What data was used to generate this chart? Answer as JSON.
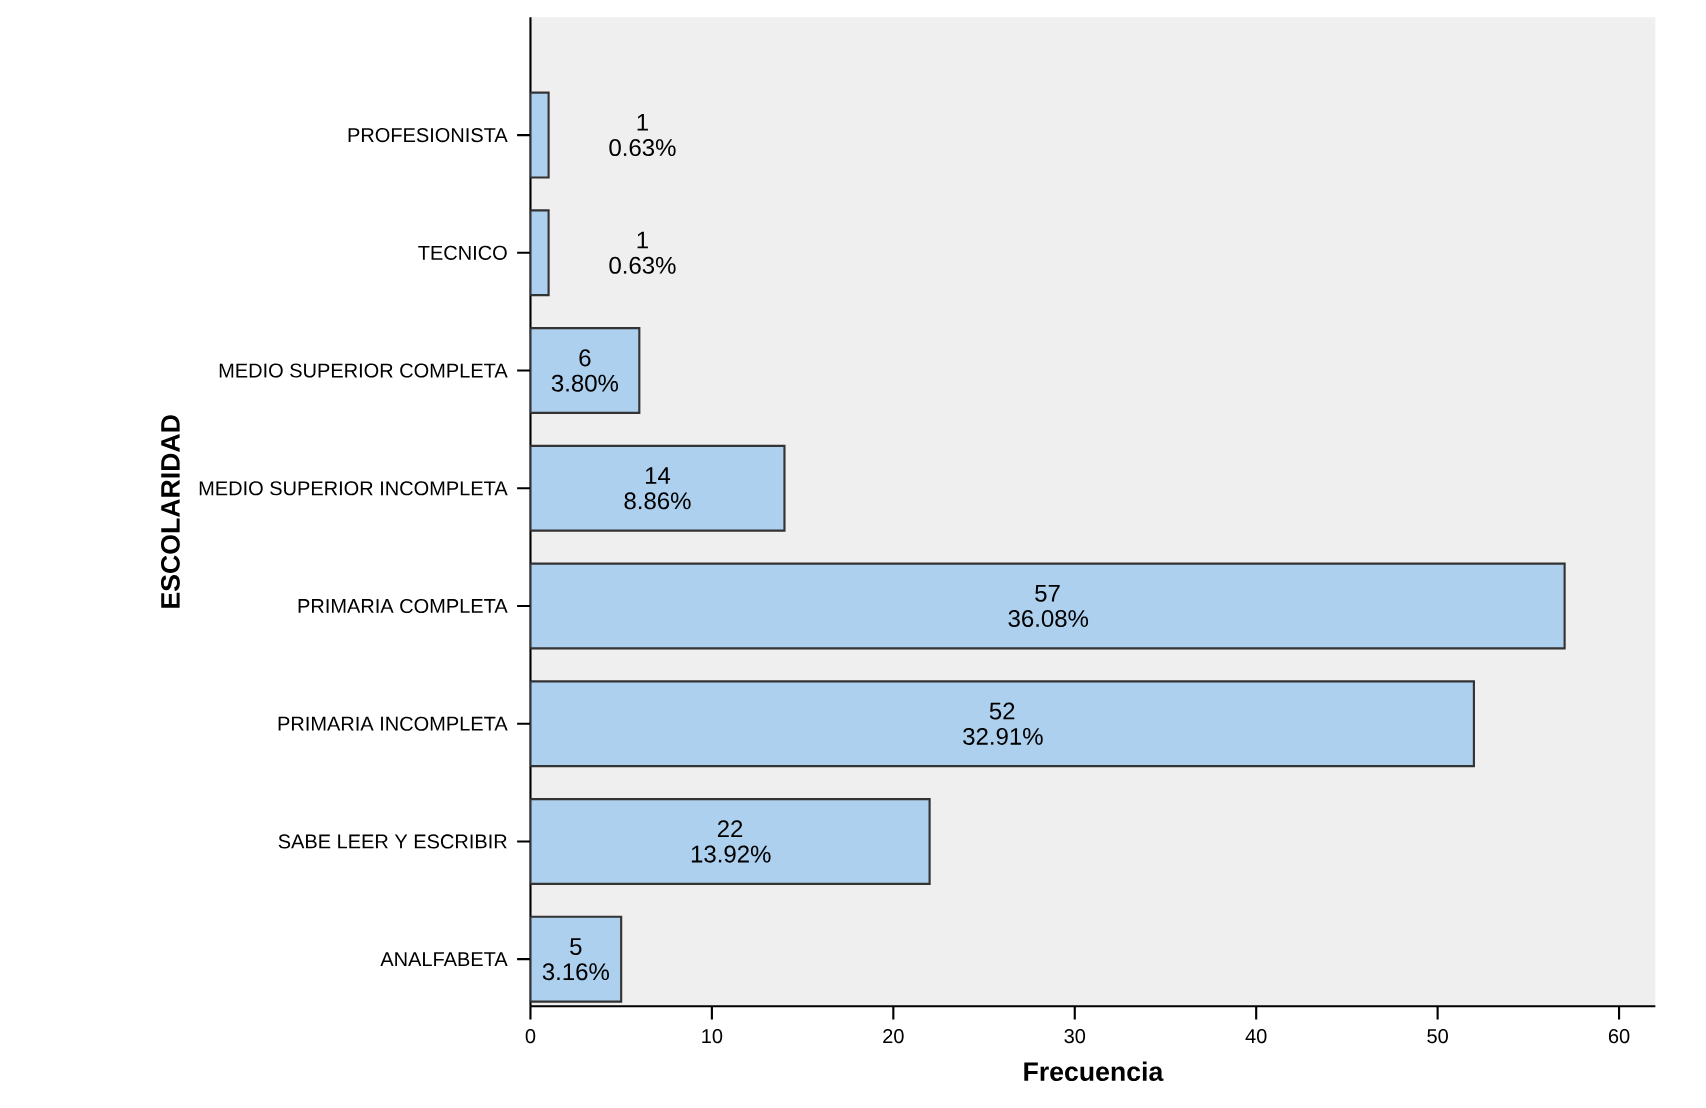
{
  "chart_data": {
    "type": "bar",
    "orientation": "horizontal",
    "xlabel": "Frecuencia",
    "ylabel": "ESCOLARIDAD",
    "categories": [
      "PROFESIONISTA",
      "TECNICO",
      "MEDIO SUPERIOR COMPLETA",
      "MEDIO SUPERIOR INCOMPLETA",
      "PRIMARIA COMPLETA",
      "PRIMARIA INCOMPLETA",
      "SABE LEER Y ESCRIBIR",
      "ANALFABETA"
    ],
    "values": [
      1,
      1,
      6,
      14,
      57,
      52,
      22,
      5
    ],
    "value_labels": [
      "1 0.63%",
      "1 0.63%",
      "6 3.80%",
      "14 8.86%",
      "57 36.08%",
      "52 32.91%",
      "22 13.92%",
      "5 3.16%"
    ],
    "color": "#acd0ee",
    "xlim": [
      0,
      62
    ],
    "xticks": [
      0,
      10,
      20,
      30,
      40,
      50,
      60
    ],
    "grid": false
  }
}
